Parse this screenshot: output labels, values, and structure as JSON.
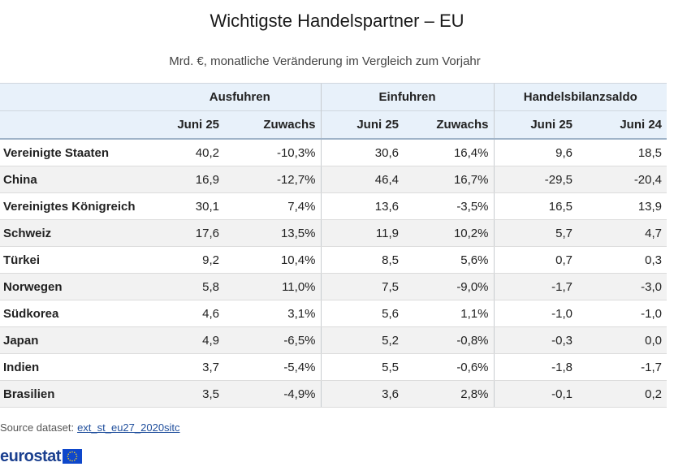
{
  "title": "Wichtigste Handelspartner – EU",
  "subtitle": "Mrd. €, monatliche Veränderung im Vergleich zum Vorjahr",
  "table": {
    "group_headers": [
      "Ausfuhren",
      "Einfuhren",
      "Handelsbilanzsaldo"
    ],
    "sub_headers": [
      "Juni 25",
      "Zuwachs",
      "Juni 25",
      "Zuwachs",
      "Juni 25",
      "Juni 24"
    ]
  },
  "chart_data": {
    "type": "table",
    "title": "Wichtigste Handelspartner – EU",
    "subtitle": "Mrd. €, monatliche Veränderung im Vergleich zum Vorjahr",
    "columns": [
      "Ausfuhren Juni 25",
      "Ausfuhren Zuwachs",
      "Einfuhren Juni 25",
      "Einfuhren Zuwachs",
      "Handelsbilanzsaldo Juni 25",
      "Handelsbilanzsaldo Juni 24"
    ],
    "rows": [
      {
        "country": "Vereinigte Staaten",
        "values": [
          "40,2",
          "-10,3%",
          "30,6",
          "16,4%",
          "9,6",
          "18,5"
        ]
      },
      {
        "country": "China",
        "values": [
          "16,9",
          "-12,7%",
          "46,4",
          "16,7%",
          "-29,5",
          "-20,4"
        ]
      },
      {
        "country": "Vereinigtes Königreich",
        "values": [
          "30,1",
          "7,4%",
          "13,6",
          "-3,5%",
          "16,5",
          "13,9"
        ]
      },
      {
        "country": "Schweiz",
        "values": [
          "17,6",
          "13,5%",
          "11,9",
          "10,2%",
          "5,7",
          "4,7"
        ]
      },
      {
        "country": "Türkei",
        "values": [
          "9,2",
          "10,4%",
          "8,5",
          "5,6%",
          "0,7",
          "0,3"
        ]
      },
      {
        "country": "Norwegen",
        "values": [
          "5,8",
          "11,0%",
          "7,5",
          "-9,0%",
          "-1,7",
          "-3,0"
        ]
      },
      {
        "country": "Südkorea",
        "values": [
          "4,6",
          "3,1%",
          "5,6",
          "1,1%",
          "-1,0",
          "-1,0"
        ]
      },
      {
        "country": "Japan",
        "values": [
          "4,9",
          "-6,5%",
          "5,2",
          "-0,8%",
          "-0,3",
          "0,0"
        ]
      },
      {
        "country": "Indien",
        "values": [
          "3,7",
          "-5,4%",
          "5,5",
          "-0,6%",
          "-1,8",
          "-1,7"
        ]
      },
      {
        "country": "Brasilien",
        "values": [
          "3,5",
          "-4,9%",
          "3,6",
          "2,8%",
          "-0,1",
          "0,2"
        ]
      }
    ]
  },
  "footer": {
    "source_label": "Source dataset:",
    "source_link": "ext_st_eu27_2020sitc",
    "logo_text": "eurostat",
    "logo_icon": "eu-flag-icon"
  },
  "colors": {
    "header_bg": "#e8f1fa",
    "stripe_bg": "#f2f2f2",
    "link": "#1f4e9c",
    "logo": "#1a3f8f",
    "flag_blue": "#0e47cb",
    "flag_stars": "#ffd617"
  }
}
